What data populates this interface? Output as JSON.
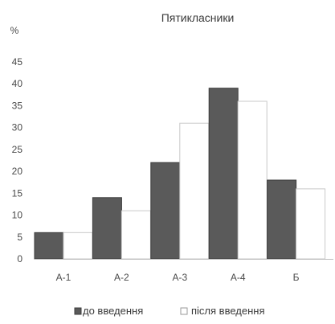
{
  "chart_data": {
    "type": "bar",
    "title": "Пятикласники",
    "ylabel": "%",
    "xlabel": "",
    "categories": [
      "А-1",
      "А-2",
      "А-3",
      "А-4",
      "Б"
    ],
    "series": [
      {
        "name": "до введення",
        "values": [
          6,
          14,
          22,
          39,
          18
        ],
        "color": "#5a5a5a"
      },
      {
        "name": "після введення",
        "values": [
          6,
          11,
          31,
          36,
          16
        ],
        "color": "#ffffff"
      }
    ],
    "yticks": [
      0,
      5,
      10,
      15,
      20,
      25,
      30,
      35,
      40,
      45
    ],
    "ylim": [
      0,
      45
    ],
    "grid": false,
    "legend": "bottom"
  }
}
